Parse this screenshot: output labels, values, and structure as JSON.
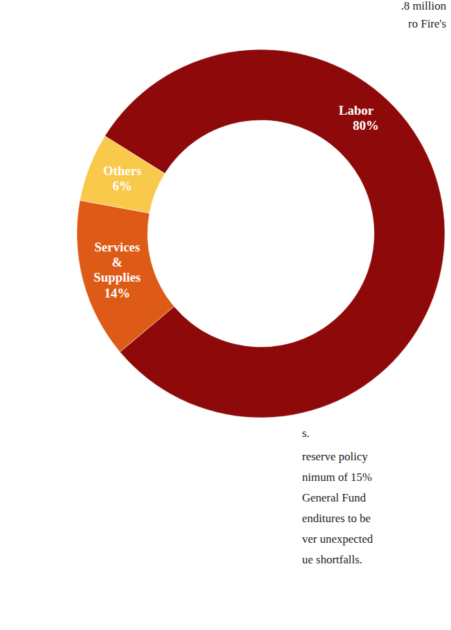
{
  "chart_data": {
    "type": "donut",
    "categories": [
      "Labor",
      "Services & Supplies",
      "Others"
    ],
    "values": [
      80,
      14,
      6
    ],
    "value_labels": [
      "80%",
      "14%",
      "6%"
    ],
    "colors": [
      "#8e0a0a",
      "#de5a17",
      "#f9c94c"
    ],
    "data_labels": true,
    "annotations": [
      ".8 million",
      "ro Fire's",
      "s.",
      "reserve policy",
      "nimum of 15%",
      "General Fund",
      "enditures to be",
      "ver unexpected",
      "ue shortfalls."
    ]
  }
}
